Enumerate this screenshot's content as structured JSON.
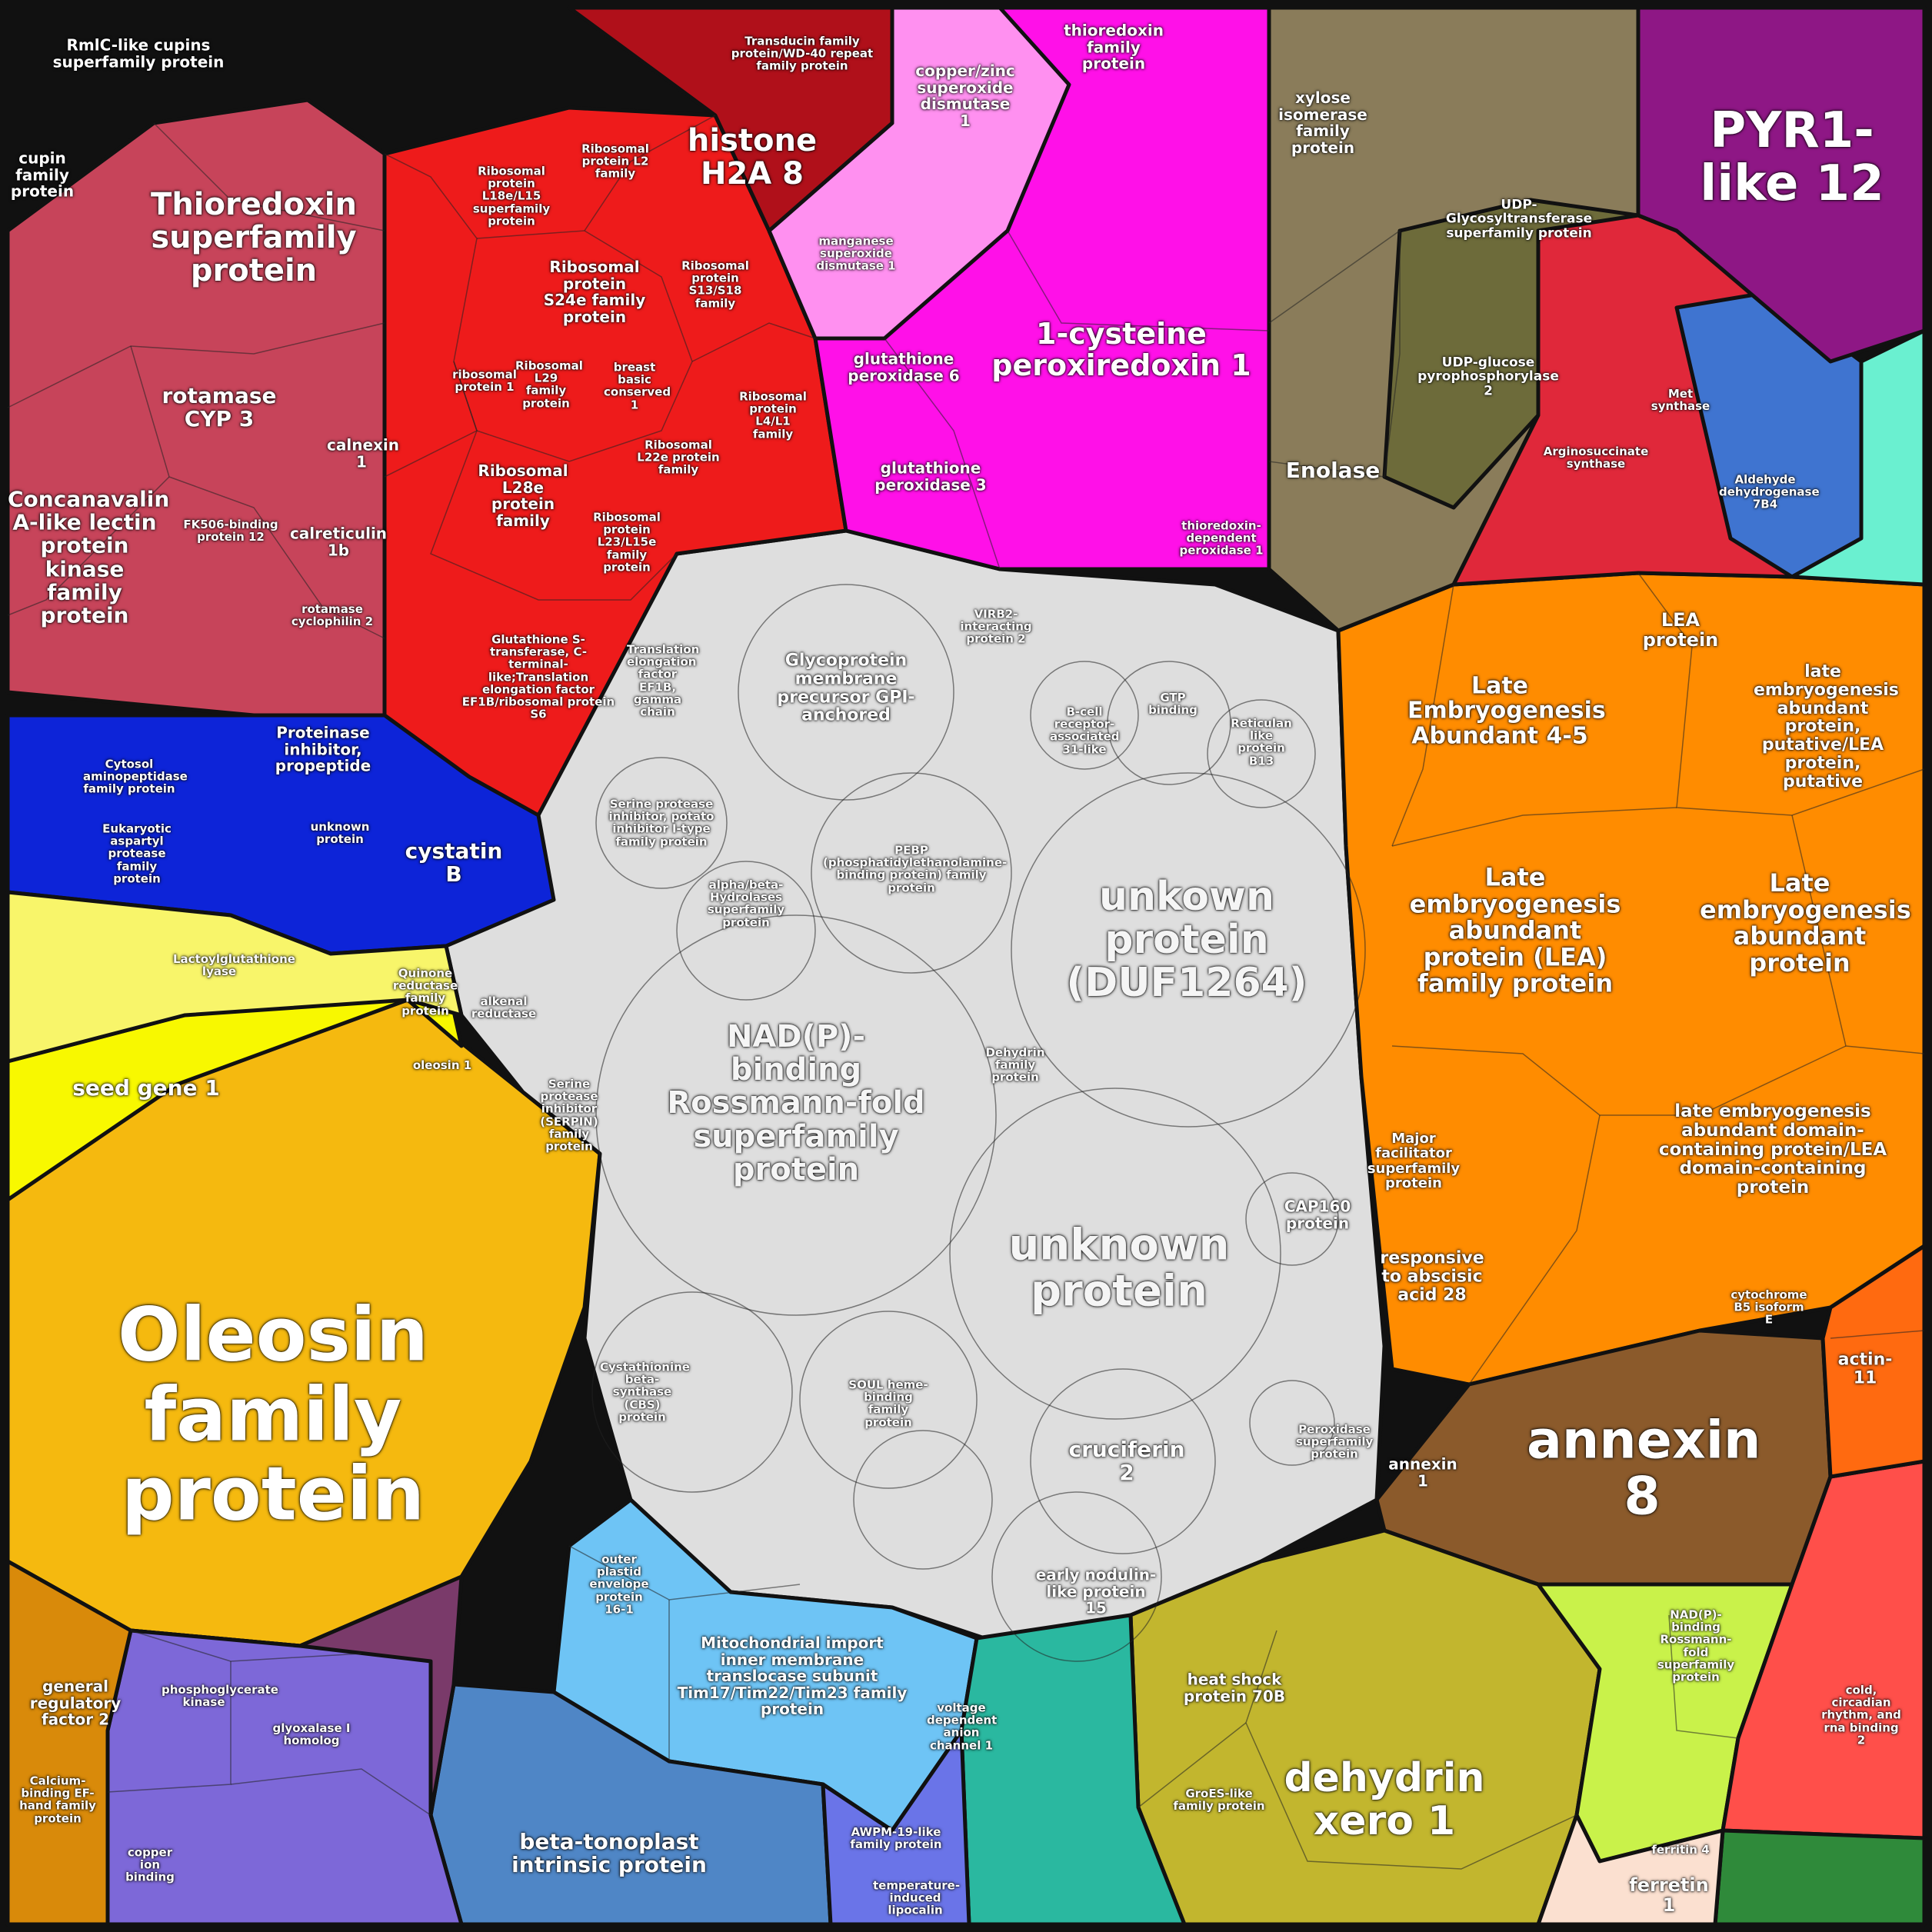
{
  "title": "",
  "labels": {
    "oleosin": "Oleosin family protein",
    "seed_gene": "seed gene 1",
    "oleosin_1": "oleosin 1",
    "rmlc": "RmlC-like cupins superfamily protein",
    "cupin": "cupin family protein",
    "thioredoxin_sf": "Thioredoxin superfamily protein",
    "rotamase_cyp3": "rotamase CYP 3",
    "concanavalin": "Concanavalin A-like lectin protein kinase family protein",
    "calnexin": "calnexin 1",
    "fk506": "FK506-binding protein 12",
    "calreticulin": "calreticulin 1b",
    "rotamase_cyclophilin": "rotamase cyclophilin 2",
    "histone": "histone H2A 8",
    "transducin": "Transducin family protein/WD-40 repeat family protein",
    "ribosomal_s24e": "Ribosomal protein S24e family protein",
    "ribosomal_l28e": "Ribosomal L28e protein family",
    "ribosomal_l22e": "Ribosomal L22e protein family",
    "ribosomal_l6": "Ribosomal protein L6 family protein",
    "ribosomal_l18e": "Ribosomal protein L18e/L15 superfamily protein",
    "ribosomal_s13": "Ribosomal protein S13/S18 family",
    "ribosomal_l4": "Ribosomal protein L4/L1 family",
    "ribosomal_l23": "Ribosomal protein L23/L15e family protein",
    "ribosomal_l29": "Ribosomal L29 family protein",
    "ribosomal_protein_1": "ribosomal protein 1",
    "breast_basic": "breast basic conserved 1",
    "ribosomal_l2": "Ribosomal protein L2 family",
    "gst_ef1b": "Glutathione S-transferase, C-terminal-like;Translation elongation factor EF1B/ribosomal protein S6",
    "translation_ef1b": "Translation elongation factor EF1B, gamma chain",
    "copper_zinc": "copper/zinc superoxide dismutase 1",
    "manganese": "manganese superoxide dismutase 1",
    "thioredoxin_family": "thioredoxin family protein",
    "one_cys": "1-cysteine peroxiredoxin 1",
    "gpx6": "glutathione peroxidase 6",
    "gpx3": "glutathione peroxidase 3",
    "thioredoxin_dep": "thioredoxin-dependent peroxidase 1",
    "xylose": "xylose isomerase family protein",
    "udp_glycosyl": "UDP-Glycosyltransferase superfamily protein",
    "udp_glucose": "UDP-glucose pyrophosphorylase 2",
    "enolase": "Enolase",
    "pyr1": "PYR1-like 12",
    "met_synthase": "Met synthase",
    "argininosuccinate": "Arginosuccinate synthase",
    "aldehyde": "Aldehyde dehydrogenase 7B4",
    "proteinase_inhib": "Proteinase inhibitor, propeptide",
    "cystatin": "cystatin B",
    "unknown_protein_small": "unknown protein",
    "cytosol_amino": "Cytosol aminopeptidase family protein",
    "eukaryotic_aspartyl": "Eukaryotic aspartyl protease family protein",
    "glycoprotein": "Glycoprotein membrane precursor GPI-anchored",
    "vib2": "VIRB2-interacting protein 2",
    "gtp_binding": "GTP binding",
    "reticulan": "Reticulan like protein B13",
    "b_cell": "B-cell receptor-associated 31-like",
    "serine_potato": "Serine protease inhibitor, potato inhibitor I-type family protein",
    "pebp": "PEBP (phosphatidylethanolamine-binding protein) family protein",
    "alpha_beta": "alpha/beta-Hydrolases superfamily protein",
    "duf1264": "unkown protein (DUF1264)",
    "nadp_rossmann": "NAD(P)-binding Rossmann-fold superfamily protein",
    "unknown_protein": "unknown protein",
    "serpin": "Serine protease inhibitor (SERPIN) family protein",
    "dehydrin_family": "Dehydrin family protein",
    "cap160": "CAP160 protein",
    "alkenal": "alkenal reductase",
    "quinone": "Quinone reductase family protein",
    "cystathionine": "Cystathionine beta-synthase (CBS) protein",
    "soul": "SOUL heme-binding family protein",
    "cruciferin": "cruciferin 2",
    "early_nodulin": "early nodulin-like protein 15",
    "peroxidase": "Peroxidase superfamily protein",
    "lea_protein": "LEA protein",
    "lea_45": "Late Embryogenesis Abundant 4-5",
    "lea_putative": "late embryogenesis abundant protein, putative/LEA protein, putative",
    "lea_family": "Late embryogenesis abundant protein (LEA) family protein",
    "lea_abundant": "Late embryogenesis abundant protein",
    "lea_domain": "late embryogenesis abundant domain-containing protein/LEA domain-containing protein",
    "major_facilitator": "Major facilitator superfamily protein",
    "aba28": "responsive to abscisic acid 28",
    "annexin8": "annexin 8",
    "annexin1": "annexin 1",
    "actin11": "actin-11",
    "cytochrome_b5": "cytochrome B5 isoform E",
    "outer_plastid": "outer plastid envelope protein 16-1",
    "mito_import": "Mitochondrial import inner membrane translocase subunit Tim17/Tim22/Tim23 family protein",
    "beta_tonoplast": "beta-tonoplast intrinsic protein",
    "voltage_anion": "voltage dependent anion channel 1",
    "awpm": "AWPM-19-like family protein",
    "temperature_lipocalin": "temperature-induced lipocalin",
    "heat_shock": "heat shock protein 70B",
    "groes": "GroES-like family protein",
    "dehydrin_xero": "dehydrin xero 1",
    "nadp_rossmann_small": "NAD(P)-binding Rossmann-fold superfamily protein",
    "ferritin4": "ferritin 4",
    "ferritin1": "ferretin 1",
    "general_reg": "general regulatory factor 2",
    "calcium_binding": "Calcium-binding EF-hand family protein",
    "glyoxalase": "glyoxalase I homolog",
    "phosphoglycerate": "phosphoglycerate kinase",
    "copper_ion": "copper ion binding",
    "lactoylglutathione": "Lactoylglutathione lyase",
    "cold_circadian": "cold, circadian rhythm, and rna binding 2",
    "lea_45_small": "LEA"
  },
  "colors": {
    "oleosin": "#f5b90f",
    "seed": "#f8f800",
    "grey": "#dedede",
    "orange": "#ff8c00",
    "red_ribo": "#ee1b1b",
    "rose": "#c7445a",
    "magenta": "#ff10e8",
    "pink_light": "#ff90f0",
    "purple_pyr": "#8e1785",
    "brown_annexin": "#8b5a2b",
    "olive_dehydrin": "#c2b62e",
    "blue_mito": "#6ec4f5",
    "blue_tonoplast": "#4f86c6",
    "blue_cystatin": "#0d24d8",
    "lime": "#c9f24a",
    "salmon": "#ff4f4a",
    "khaki": "#8a7c5a",
    "olive_dark": "#6d6b3a"
  }
}
